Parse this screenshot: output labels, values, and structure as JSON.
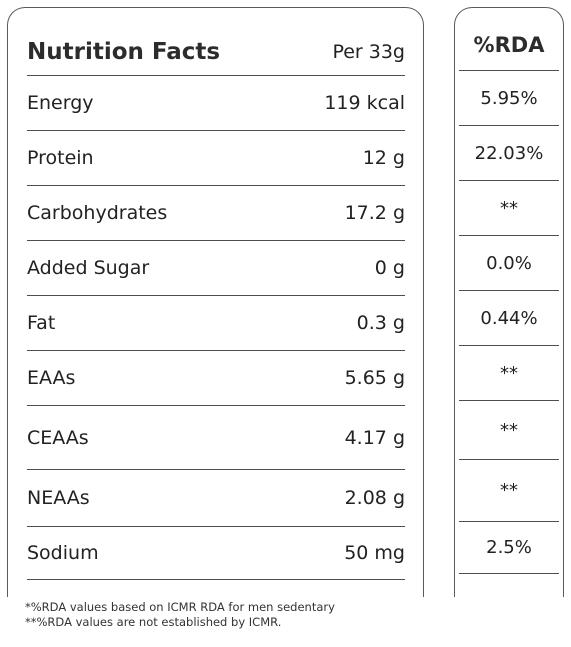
{
  "header": {
    "title": "Nutrition Facts",
    "per": "Per 33g",
    "rda_title": "%RDA"
  },
  "rows": [
    {
      "name": "Energy",
      "amount": "119 kcal",
      "rda": "5.95%"
    },
    {
      "name": "Protein",
      "amount": "12 g",
      "rda": "22.03%"
    },
    {
      "name": "Carbohydrates",
      "amount": "17.2 g",
      "rda": "**"
    },
    {
      "name": "Added Sugar",
      "amount": "0 g",
      "rda": "0.0%"
    },
    {
      "name": "Fat",
      "amount": "0.3 g",
      "rda": "0.44%"
    },
    {
      "name": "EAAs",
      "amount": "5.65 g",
      "rda": "**"
    },
    {
      "name": "CEAAs",
      "amount": "4.17 g",
      "rda": "**"
    },
    {
      "name": "NEAAs",
      "amount": "2.08 g",
      "rda": "**"
    },
    {
      "name": "Sodium",
      "amount": "50 mg",
      "rda": "2.5%"
    }
  ],
  "footnotes": [
    "*%RDA values based on ICMR RDA for men sedentary",
    "**%RDA values are not established by ICMR."
  ]
}
